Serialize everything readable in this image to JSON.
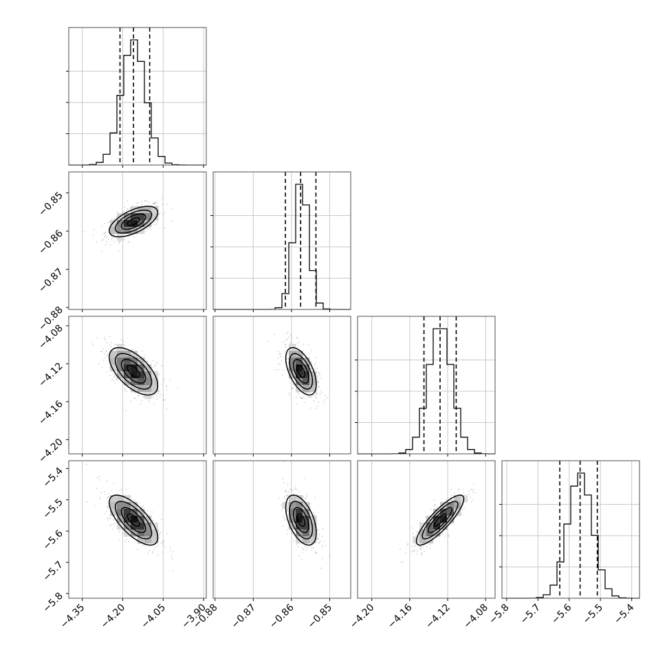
{
  "chart_data": {
    "type": "corner",
    "grid": true,
    "xlabel": "",
    "ylabel": "",
    "parameters": [
      {
        "index": 0,
        "center": -4.16,
        "spread": 0.045,
        "range": [
          -4.4,
          -3.89
        ],
        "quantiles": [
          -4.21,
          -4.16,
          -4.1
        ],
        "ticks": [
          -4.35,
          -4.2,
          -4.05,
          -3.9
        ],
        "tick_labels": [
          "−4.35",
          "−4.20",
          "−4.05",
          "−3.90"
        ]
      },
      {
        "index": 1,
        "center": -0.8575,
        "spread": 0.002,
        "range": [
          -0.8805,
          -0.8445
        ],
        "quantiles": [
          -0.8616,
          -0.8576,
          -0.8536
        ],
        "ticks": [
          -0.88,
          -0.87,
          -0.86,
          -0.85
        ],
        "tick_labels": [
          "−0.88",
          "−0.87",
          "−0.86",
          "−0.85"
        ]
      },
      {
        "index": 2,
        "center": -4.128,
        "spread": 0.0125,
        "range": [
          -4.215,
          -4.07
        ],
        "quantiles": [
          -4.145,
          -4.128,
          -4.111
        ],
        "ticks": [
          -4.2,
          -4.16,
          -4.12,
          -4.08
        ],
        "tick_labels": [
          "−4.20",
          "−4.16",
          "−4.12",
          "−4.08"
        ]
      },
      {
        "index": 3,
        "center": -5.565,
        "spread": 0.04,
        "range": [
          -5.815,
          -5.375
        ],
        "quantiles": [
          -5.63,
          -5.565,
          -5.51
        ],
        "ticks": [
          -5.8,
          -5.7,
          -5.6,
          -5.5,
          -5.4
        ],
        "tick_labels": [
          "−5.8",
          "−5.7",
          "−5.6",
          "−5.5",
          "−5.4"
        ]
      }
    ],
    "correlations": [
      {
        "x": 0,
        "y": 1,
        "rho": 0.6
      },
      {
        "x": 0,
        "y": 2,
        "rho": -0.6
      },
      {
        "x": 1,
        "y": 2,
        "rho": -0.55
      },
      {
        "x": 0,
        "y": 3,
        "rho": -0.7
      },
      {
        "x": 1,
        "y": 3,
        "rho": -0.5
      },
      {
        "x": 2,
        "y": 3,
        "rho": 0.85
      }
    ],
    "histogram_bins": 20,
    "contour_levels_sigma": [
      0.5,
      1.0,
      1.5,
      2.0
    ],
    "colors": {
      "density": "#000000",
      "samples": "#7a7a7a",
      "lines": "#000000",
      "grid": "#c8c8c8"
    }
  }
}
